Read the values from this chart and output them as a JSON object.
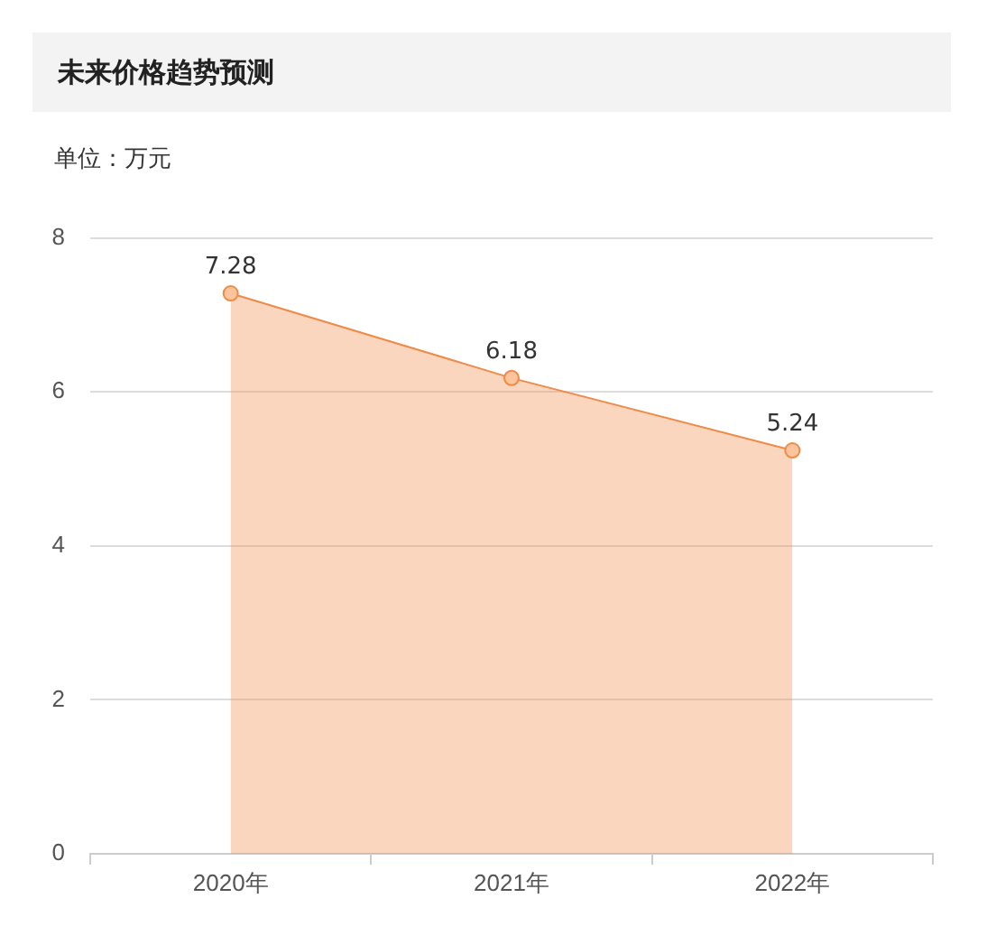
{
  "chart_data": {
    "type": "area",
    "title": "未来价格趋势预测",
    "ylabel": "单位：万元",
    "categories": [
      "2020年",
      "2021年",
      "2022年"
    ],
    "series": [
      {
        "color": "#f08a46",
        "values": [
          7.28,
          6.18,
          5.24
        ]
      }
    ],
    "ylim": [
      0,
      8
    ],
    "yticks": [
      0,
      2,
      4,
      6,
      8
    ],
    "grid": "y",
    "data_labels": true,
    "marker": "circle"
  }
}
